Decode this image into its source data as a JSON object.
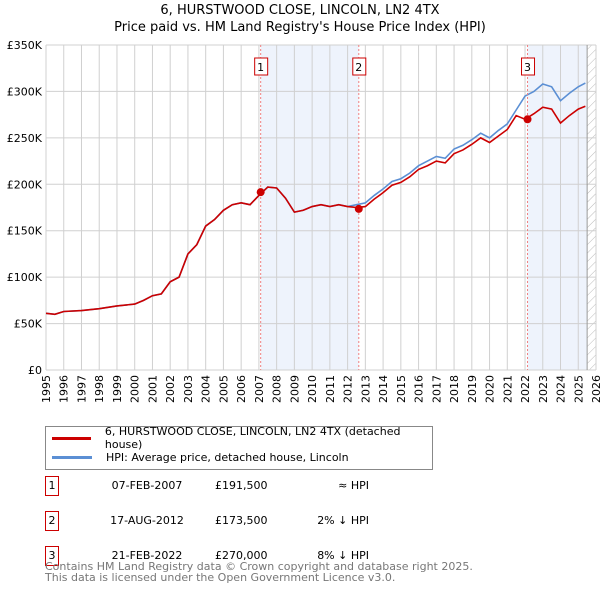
{
  "chart_data": {
    "type": "line",
    "title": "6, HURSTWOOD CLOSE, LINCOLN, LN2 4TX",
    "subtitle": "Price paid vs. HM Land Registry's House Price Index (HPI)",
    "xlim": [
      1995,
      2026
    ],
    "ylim": [
      0,
      350000
    ],
    "yticks": [
      {
        "v": 0,
        "label": "£0"
      },
      {
        "v": 50000,
        "label": "£50K"
      },
      {
        "v": 100000,
        "label": "£100K"
      },
      {
        "v": 150000,
        "label": "£150K"
      },
      {
        "v": 200000,
        "label": "£200K"
      },
      {
        "v": 250000,
        "label": "£250K"
      },
      {
        "v": 300000,
        "label": "£300K"
      },
      {
        "v": 350000,
        "label": "£350K"
      }
    ],
    "xticks": [
      "1995",
      "1996",
      "1997",
      "1998",
      "1999",
      "2000",
      "2001",
      "2002",
      "2003",
      "2004",
      "2005",
      "2006",
      "2007",
      "2008",
      "2009",
      "2010",
      "2011",
      "2012",
      "2013",
      "2014",
      "2015",
      "2016",
      "2017",
      "2018",
      "2019",
      "2020",
      "2021",
      "2022",
      "2023",
      "2024",
      "2025",
      "2026"
    ],
    "grid": true,
    "shaded_periods": [
      [
        2007.1,
        2012.63
      ],
      [
        2022.14,
        2025.5
      ]
    ],
    "future_hatch_from": 2025.5,
    "series": [
      {
        "name": "HPI: Average price, detached house, Lincoln",
        "color": "#5b8fd4",
        "x": [
          1995,
          1995.5,
          1996,
          1997,
          1998,
          1999,
          2000,
          2000.5,
          2001,
          2001.5,
          2002,
          2002.5,
          2003,
          2003.5,
          2004,
          2004.5,
          2005,
          2005.5,
          2006,
          2006.5,
          2007,
          2007.5,
          2008,
          2008.5,
          2009,
          2009.5,
          2010,
          2010.5,
          2011,
          2011.5,
          2012,
          2012.5,
          2013,
          2013.5,
          2014,
          2014.5,
          2015,
          2015.5,
          2016,
          2016.5,
          2017,
          2017.5,
          2018,
          2018.5,
          2019,
          2019.5,
          2020,
          2020.5,
          2021,
          2021.5,
          2022,
          2022.5,
          2023,
          2023.5,
          2024,
          2024.5,
          2025,
          2025.4
        ],
        "y": [
          61000,
          60000,
          63000,
          64000,
          66000,
          69000,
          71000,
          75000,
          80000,
          82000,
          95000,
          100000,
          125000,
          135000,
          155000,
          162000,
          172000,
          178000,
          180000,
          178000,
          188000,
          197000,
          196000,
          185000,
          170000,
          172000,
          176000,
          178000,
          176000,
          178000,
          176000,
          178000,
          180000,
          188000,
          195000,
          203000,
          206000,
          212000,
          220000,
          225000,
          230000,
          228000,
          238000,
          242000,
          248000,
          255000,
          250000,
          258000,
          265000,
          280000,
          295000,
          300000,
          308000,
          305000,
          290000,
          298000,
          305000,
          309000
        ]
      },
      {
        "name": "6, HURSTWOOD CLOSE, LINCOLN, LN2 4TX (detached house)",
        "color": "#cc0000",
        "x": [
          1995,
          1995.5,
          1996,
          1997,
          1998,
          1999,
          2000,
          2000.5,
          2001,
          2001.5,
          2002,
          2002.5,
          2003,
          2003.5,
          2004,
          2004.5,
          2005,
          2005.5,
          2006,
          2006.5,
          2007,
          2007.5,
          2008,
          2008.5,
          2009,
          2009.5,
          2010,
          2010.5,
          2011,
          2011.5,
          2012,
          2012.5,
          2013,
          2013.5,
          2014,
          2014.5,
          2015,
          2015.5,
          2016,
          2016.5,
          2017,
          2017.5,
          2018,
          2018.5,
          2019,
          2019.5,
          2020,
          2020.5,
          2021,
          2021.5,
          2022,
          2022.5,
          2023,
          2023.5,
          2024,
          2024.5,
          2025,
          2025.4
        ],
        "y": [
          61000,
          60000,
          63000,
          64000,
          66000,
          69000,
          71000,
          75000,
          80000,
          82000,
          95000,
          100000,
          125000,
          135000,
          155000,
          162000,
          172000,
          178000,
          180000,
          178000,
          188000,
          197000,
          196000,
          185000,
          170000,
          172000,
          176000,
          178000,
          176000,
          178000,
          176000,
          175000,
          176000,
          184000,
          191000,
          199000,
          202000,
          208000,
          216000,
          220000,
          225000,
          223000,
          233000,
          237000,
          243000,
          250000,
          245000,
          252000,
          259000,
          274000,
          270000,
          276000,
          283000,
          281000,
          266000,
          274000,
          281000,
          284000
        ]
      }
    ],
    "sales": [
      {
        "n": "1",
        "x": 2007.1,
        "price": 191500,
        "date": "07-FEB-2007",
        "price_label": "£191,500",
        "hpi": "≈ HPI"
      },
      {
        "n": "2",
        "x": 2012.63,
        "price": 173500,
        "date": "17-AUG-2012",
        "price_label": "£173,500",
        "hpi": "2% ↓ HPI"
      },
      {
        "n": "3",
        "x": 2022.14,
        "price": 270000,
        "date": "21-FEB-2022",
        "price_label": "£270,000",
        "hpi": "8% ↓ HPI"
      }
    ]
  },
  "legend": {
    "price": "6, HURSTWOOD CLOSE, LINCOLN, LN2 4TX (detached house)",
    "hpi": "HPI: Average price, detached house, Lincoln"
  },
  "footer": {
    "line1": "Contains HM Land Registry data © Crown copyright and database right 2025.",
    "line2": "This data is licensed under the Open Government Licence v3.0."
  }
}
